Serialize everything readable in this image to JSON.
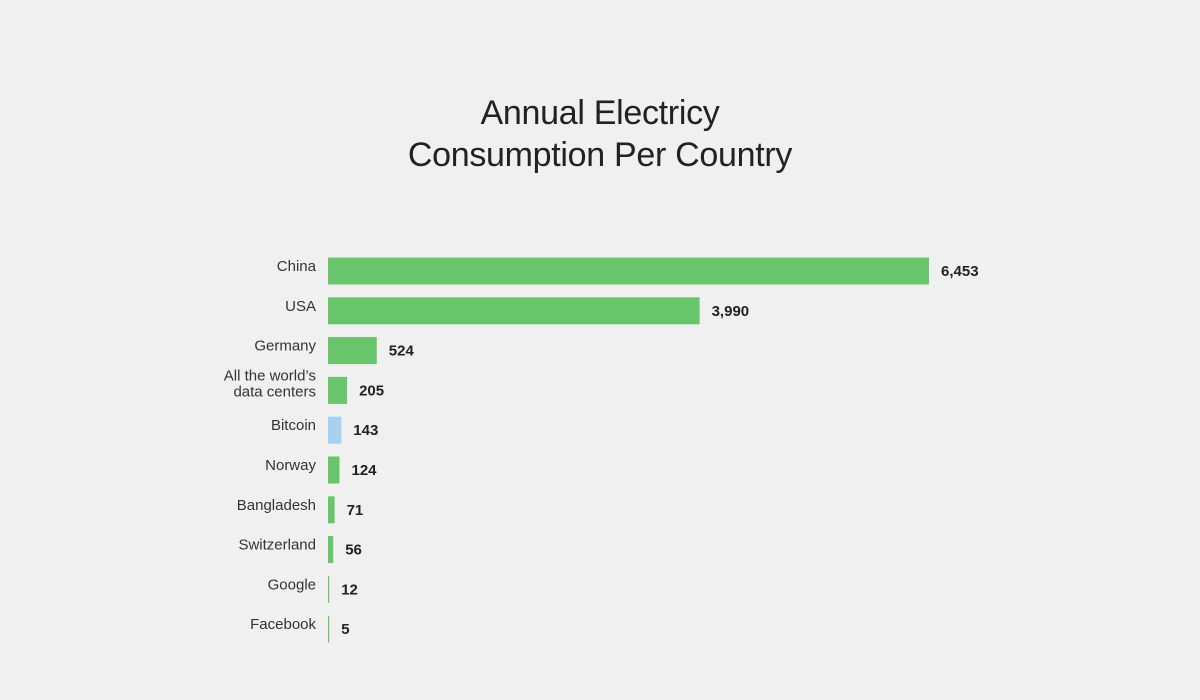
{
  "chart_data": {
    "type": "bar",
    "orientation": "horizontal",
    "title": [
      "Annual Electricy",
      "Consumption Per Country"
    ],
    "categories": [
      "China",
      "USA",
      "Germany",
      "All the world’s data centers",
      "Bitcoin",
      "Norway",
      "Bangladesh",
      "Switzerland",
      "Google",
      "Facebook"
    ],
    "category_lines": [
      [
        "China"
      ],
      [
        "USA"
      ],
      [
        "Germany"
      ],
      [
        "All the world’s",
        "data centers"
      ],
      [
        "Bitcoin"
      ],
      [
        "Norway"
      ],
      [
        "Bangladesh"
      ],
      [
        "Switzerland"
      ],
      [
        "Google"
      ],
      [
        "Facebook"
      ]
    ],
    "values": [
      6453,
      3990,
      524,
      205,
      143,
      124,
      71,
      56,
      12,
      5
    ],
    "value_labels": [
      "6,453",
      "3,990",
      "524",
      "205",
      "143",
      "124",
      "71",
      "56",
      "12",
      "5"
    ],
    "bar_colors": [
      "#69c56b",
      "#69c56b",
      "#69c56b",
      "#69c56b",
      "#a6d2f2",
      "#69c56b",
      "#69c56b",
      "#69c56b",
      "#69c56b",
      "#69c56b"
    ],
    "xlim": [
      0,
      6453
    ],
    "grid": false,
    "legend": "none"
  }
}
